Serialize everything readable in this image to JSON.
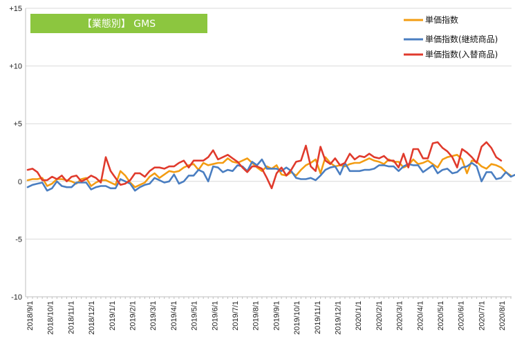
{
  "chart_data": {
    "type": "line",
    "title": "【業態別】 GMS",
    "ylim": [
      -10,
      15
    ],
    "yticks": [
      15,
      10,
      5,
      0,
      -5,
      -10
    ],
    "ytick_labels": [
      "+15",
      "+10",
      "+5",
      "0",
      "-5",
      "-10"
    ],
    "x_tick_labels": [
      "2018/9/1",
      "2018/10/1",
      "2018/11/1",
      "2018/12/1",
      "2019/1/1",
      "2019/2/1",
      "2019/3/1",
      "2019/4/1",
      "2019/5/1",
      "2019/6/1",
      "2019/7/1",
      "2019/8/1",
      "2019/9/1",
      "2019/10/1",
      "2019/11/1",
      "2019/12/1",
      "2020/1/1",
      "2020/2/1",
      "2020/3/1",
      "2020/4/1",
      "2020/5/1",
      "2020/6/1",
      "2020/7/1",
      "2020/8/1"
    ],
    "legend_position": "top-right",
    "grid": "horizontal",
    "title_box_color": "#8cc63f",
    "series": [
      {
        "name": "単価指数",
        "color": "#f39c12",
        "values": [
          0.1,
          0.2,
          0.2,
          0.3,
          -0.4,
          -0.2,
          0.2,
          0.2,
          0.1,
          0.0,
          -0.2,
          0.2,
          0.3,
          -0.4,
          -0.1,
          0.1,
          0.1,
          -0.1,
          -0.3,
          0.9,
          0.5,
          -0.1,
          -0.5,
          -0.3,
          -0.1,
          0.4,
          0.7,
          0.3,
          0.6,
          0.9,
          0.8,
          0.9,
          1.2,
          1.4,
          1.5,
          1.0,
          1.6,
          1.4,
          1.5,
          1.6,
          1.6,
          2.0,
          1.7,
          1.6,
          1.8,
          2.0,
          1.6,
          1.2,
          0.9,
          1.3,
          1.1,
          1.4,
          0.6,
          0.5,
          0.8,
          0.5,
          1.0,
          1.4,
          1.6,
          1.9,
          0.7,
          2.1,
          1.6,
          1.3,
          1.4,
          1.3,
          1.5,
          1.6,
          1.6,
          1.8,
          2.0,
          1.8,
          1.7,
          1.5,
          1.9,
          1.7,
          1.7,
          1.2,
          1.4,
          1.9,
          1.5,
          1.6,
          1.8,
          1.5,
          1.2,
          1.9,
          2.1,
          2.2,
          2.3,
          1.9,
          0.7,
          1.8,
          1.7,
          1.3,
          1.1,
          1.5,
          1.4,
          1.2,
          0.8,
          0.5
        ]
      },
      {
        "name": "単価指数(継続商品)",
        "color": "#4a7ec1",
        "values": [
          -0.5,
          -0.3,
          -0.2,
          -0.1,
          -0.8,
          -0.6,
          0.0,
          -0.4,
          -0.5,
          -0.5,
          -0.1,
          -0.1,
          -0.1,
          -0.7,
          -0.5,
          -0.4,
          -0.4,
          -0.6,
          -0.6,
          0.2,
          0.0,
          -0.2,
          -0.8,
          -0.5,
          -0.3,
          -0.2,
          0.3,
          0.1,
          -0.1,
          0.0,
          0.6,
          -0.2,
          0.0,
          0.5,
          0.5,
          1.0,
          0.8,
          0.0,
          1.3,
          1.2,
          0.8,
          1.0,
          0.9,
          1.4,
          1.3,
          0.9,
          1.7,
          1.4,
          1.9,
          1.1,
          1.1,
          1.1,
          0.9,
          1.2,
          0.9,
          0.3,
          0.2,
          0.2,
          0.3,
          0.1,
          0.5,
          1.0,
          1.2,
          1.3,
          0.6,
          1.6,
          0.9,
          0.9,
          0.9,
          1.0,
          1.0,
          1.1,
          1.4,
          1.4,
          1.3,
          1.3,
          0.9,
          1.3,
          1.5,
          1.4,
          1.4,
          0.8,
          1.1,
          1.4,
          0.7,
          1.0,
          1.1,
          0.7,
          0.8,
          1.2,
          1.3,
          1.6,
          1.3,
          0.0,
          0.8,
          0.8,
          0.2,
          0.3,
          0.8,
          0.4,
          0.6,
          0.0,
          -0.2
        ]
      },
      {
        "name": "単価指数(入替商品)",
        "color": "#e03a2c",
        "values": [
          1.0,
          1.1,
          0.8,
          0.1,
          0.1,
          0.4,
          0.2,
          0.5,
          0.0,
          0.4,
          0.5,
          0.0,
          0.2,
          0.5,
          0.3,
          -0.1,
          2.1,
          0.9,
          0.3,
          -0.3,
          -0.2,
          0.1,
          0.7,
          0.7,
          0.4,
          0.9,
          1.2,
          1.2,
          1.1,
          1.3,
          1.3,
          1.6,
          1.8,
          1.2,
          1.8,
          1.8,
          1.8,
          2.1,
          2.7,
          1.9,
          2.1,
          2.3,
          2.0,
          1.7,
          1.2,
          0.8,
          1.3,
          1.3,
          1.1,
          0.3,
          -0.6,
          0.7,
          1.2,
          0.5,
          1.0,
          1.7,
          1.8,
          3.1,
          1.3,
          0.9,
          3.0,
          1.8,
          1.5,
          2.0,
          1.4,
          1.6,
          2.4,
          1.9,
          2.2,
          2.1,
          2.4,
          2.1,
          2.0,
          2.2,
          1.8,
          1.8,
          1.2,
          2.4,
          1.2,
          2.8,
          2.8,
          2.0,
          2.0,
          3.3,
          3.4,
          2.9,
          2.6,
          2.1,
          1.2,
          2.8,
          2.5,
          2.1,
          1.6,
          3.0,
          3.4,
          2.9,
          2.1,
          1.8
        ]
      }
    ]
  }
}
